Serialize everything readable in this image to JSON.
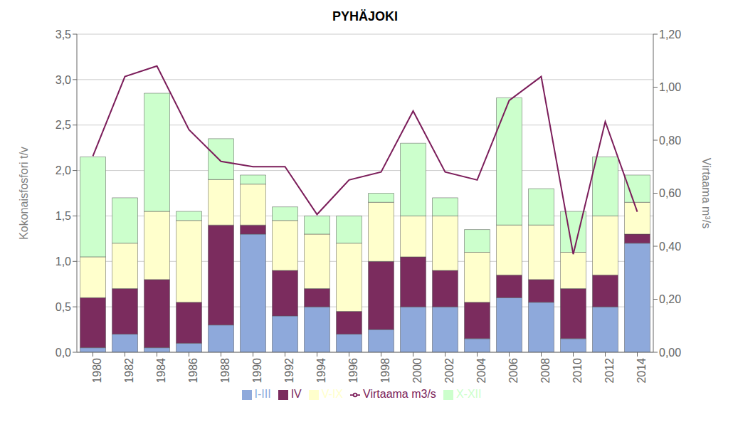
{
  "chart_data": {
    "type": "bar",
    "title": "PYHÄJOKI",
    "ylabel": "Kokonaisfosfori t/v",
    "y2label": "Virtaama m³/s",
    "categories": [
      "1980",
      "1982",
      "1984",
      "1986",
      "1988",
      "1990",
      "1992",
      "1994",
      "1996",
      "1998",
      "2000",
      "2002",
      "2004",
      "2006",
      "2008",
      "2010",
      "2012",
      "2014"
    ],
    "stacked": true,
    "grid": true,
    "legend": "bottom",
    "series": [
      {
        "name": "I-III",
        "type": "bar",
        "color": "#8EA9DB",
        "values": [
          0.05,
          0.2,
          0.05,
          0.1,
          0.3,
          1.3,
          0.4,
          0.5,
          0.2,
          0.25,
          0.5,
          0.5,
          0.15,
          0.6,
          0.55,
          0.15,
          0.5,
          1.2
        ]
      },
      {
        "name": "IV",
        "type": "bar",
        "color": "#7B2C5E",
        "values": [
          0.55,
          0.5,
          0.75,
          0.45,
          1.1,
          0.1,
          0.5,
          0.2,
          0.25,
          0.75,
          0.55,
          0.4,
          0.4,
          0.25,
          0.25,
          0.55,
          0.35,
          0.1
        ]
      },
      {
        "name": "V-IX",
        "type": "bar",
        "color": "#FFFFCC",
        "values": [
          0.45,
          0.5,
          0.75,
          0.9,
          0.5,
          0.45,
          0.55,
          0.6,
          0.75,
          0.65,
          0.45,
          0.6,
          0.55,
          0.55,
          0.6,
          0.4,
          0.65,
          0.35
        ]
      },
      {
        "name": "X-XII",
        "type": "bar",
        "color": "#CCFFCC",
        "values": [
          1.1,
          0.5,
          1.3,
          0.1,
          0.45,
          0.1,
          0.15,
          0.2,
          0.3,
          0.1,
          0.8,
          0.2,
          0.25,
          1.4,
          0.4,
          0.45,
          0.65,
          0.3
        ]
      },
      {
        "name": "Virtaama m3/s",
        "type": "line",
        "axis": "y2",
        "color": "#7B1D5A",
        "values": [
          0.74,
          1.04,
          1.08,
          0.84,
          0.72,
          0.7,
          0.7,
          0.52,
          0.65,
          0.68,
          0.91,
          0.68,
          0.65,
          0.95,
          1.04,
          0.37,
          0.87,
          0.53
        ]
      }
    ],
    "ylim": [
      0.0,
      3.5
    ],
    "yticks": [
      {
        "value": 0.0,
        "label": "0,0"
      },
      {
        "value": 0.5,
        "label": "0,5"
      },
      {
        "value": 1.0,
        "label": "1,0"
      },
      {
        "value": 1.5,
        "label": "1,5"
      },
      {
        "value": 2.0,
        "label": "2,0"
      },
      {
        "value": 2.5,
        "label": "2,5"
      },
      {
        "value": 3.0,
        "label": "3,0"
      },
      {
        "value": 3.5,
        "label": "3,5"
      }
    ],
    "y2lim": [
      0.0,
      1.2
    ],
    "y2ticks": [
      {
        "value": 0.0,
        "label": "0,00"
      },
      {
        "value": 0.2,
        "label": "0,20"
      },
      {
        "value": 0.4,
        "label": "0,40"
      },
      {
        "value": 0.6,
        "label": "0,60"
      },
      {
        "value": 0.8,
        "label": "0,80"
      },
      {
        "value": 1.0,
        "label": "1,00"
      },
      {
        "value": 1.2,
        "label": "1,20"
      }
    ]
  }
}
